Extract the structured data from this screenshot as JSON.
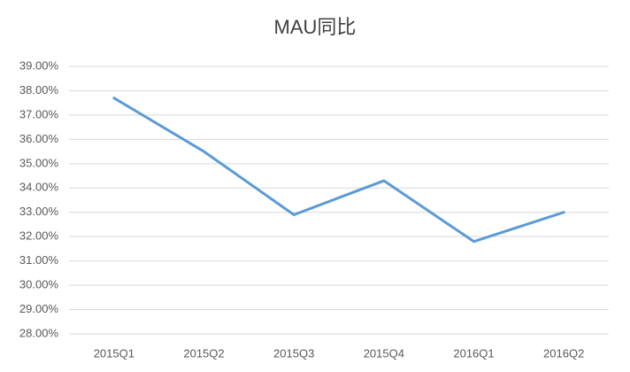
{
  "chart_data": {
    "type": "line",
    "title": "MAU同比",
    "categories": [
      "2015Q1",
      "2015Q2",
      "2015Q3",
      "2015Q4",
      "2016Q1",
      "2016Q2"
    ],
    "series": [
      {
        "name": "MAU同比",
        "color": "#5b9bd5",
        "values": [
          37.7,
          35.5,
          32.9,
          34.3,
          31.8,
          33.0
        ]
      }
    ],
    "ylim": [
      28,
      39
    ],
    "yticks": [
      {
        "value": 28,
        "label": "28.00%"
      },
      {
        "value": 29,
        "label": "29.00%"
      },
      {
        "value": 30,
        "label": "30.00%"
      },
      {
        "value": 31,
        "label": "31.00%"
      },
      {
        "value": 32,
        "label": "32.00%"
      },
      {
        "value": 33,
        "label": "33.00%"
      },
      {
        "value": 34,
        "label": "34.00%"
      },
      {
        "value": 35,
        "label": "35.00%"
      },
      {
        "value": 36,
        "label": "36.00%"
      },
      {
        "value": 37,
        "label": "37.00%"
      },
      {
        "value": 38,
        "label": "38.00%"
      },
      {
        "value": 39,
        "label": "39.00%"
      }
    ],
    "grid": true
  }
}
